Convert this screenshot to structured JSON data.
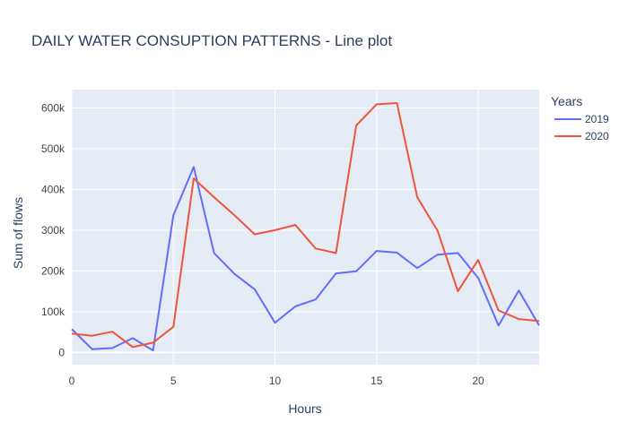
{
  "chart_data": {
    "type": "line",
    "title": "DAILY WATER CONSUPTION PATTERNS - Line plot",
    "xlabel": "Hours",
    "ylabel": "Sum of flows",
    "xlim": [
      0,
      23
    ],
    "ylim": [
      -30000,
      645000
    ],
    "x_ticks": [
      0,
      5,
      10,
      15,
      20
    ],
    "y_ticks": [
      0,
      100000,
      200000,
      300000,
      400000,
      500000,
      600000
    ],
    "y_tick_labels": [
      "0",
      "100k",
      "200k",
      "300k",
      "400k",
      "500k",
      "600k"
    ],
    "grid": true,
    "legend": {
      "title": "Years",
      "placement": "top-right, outside plot"
    },
    "x": [
      0,
      1,
      2,
      3,
      4,
      5,
      6,
      7,
      8,
      9,
      10,
      11,
      12,
      13,
      14,
      15,
      16,
      17,
      18,
      19,
      20,
      21,
      22,
      23
    ],
    "series": [
      {
        "name": "2019",
        "color": "#636efa",
        "values": [
          57000,
          8000,
          11000,
          35000,
          5000,
          337000,
          455000,
          244000,
          193000,
          155000,
          73000,
          113000,
          130000,
          194000,
          199000,
          249000,
          245000,
          207000,
          240000,
          244000,
          183000,
          66000,
          152000,
          66000
        ]
      },
      {
        "name": "2020",
        "color": "#ef553b",
        "values": [
          46000,
          41000,
          51000,
          13000,
          24000,
          63000,
          427000,
          381000,
          337000,
          290000,
          300000,
          313000,
          255000,
          244000,
          557000,
          609000,
          612000,
          381000,
          299000,
          150000,
          227000,
          103000,
          82000,
          77000
        ]
      }
    ],
    "colors": {
      "plot_background": "#e5ecf6",
      "grid": "#ffffff",
      "text": "#2a3f5f",
      "tick_text": "#444444"
    }
  }
}
